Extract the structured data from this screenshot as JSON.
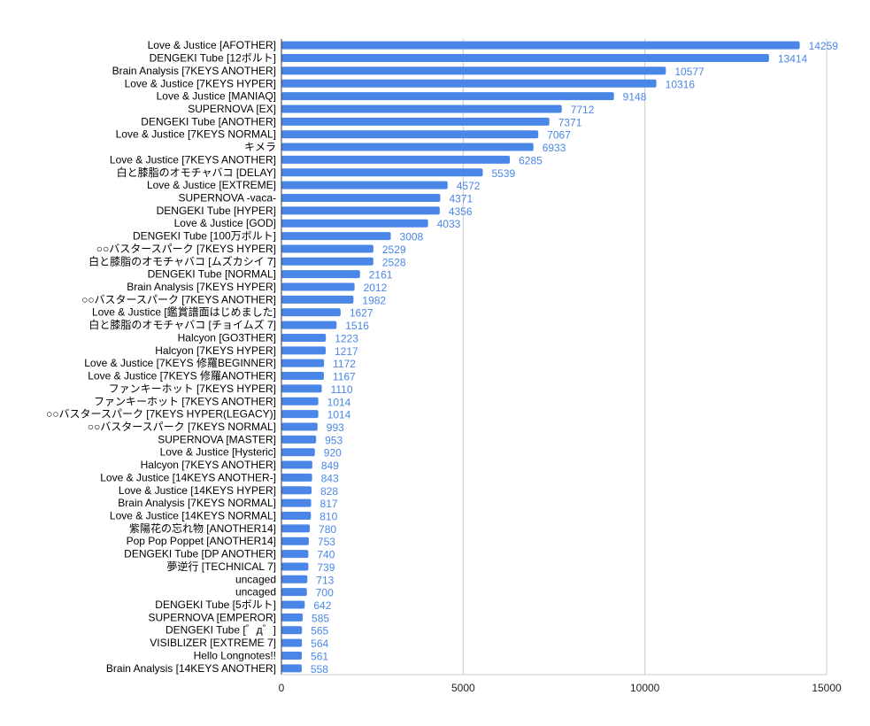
{
  "chart_data": {
    "type": "bar",
    "orientation": "horizontal",
    "title": "",
    "xlabel": "",
    "ylabel": "",
    "xlim": [
      0,
      15000
    ],
    "x_ticks": [
      0,
      5000,
      10000,
      15000
    ],
    "grid": true,
    "bar_color": "#4a86e8",
    "categories": [
      "Love & Justice [AFOTHER]",
      "DENGEKI Tube [12ボルト]",
      "Brain Analysis [7KEYS ANOTHER]",
      "Love & Justice [7KEYS HYPER]",
      "Love & Justice [MANIAQ]",
      "SUPERNOVA [EX]",
      "DENGEKI Tube [ANOTHER]",
      "Love & Justice [7KEYS NORMAL]",
      "キメラ",
      "Love & Justice [7KEYS ANOTHER]",
      "白と膝脂のオモチャバコ [DELAY]",
      "Love & Justice [EXTREME]",
      "SUPERNOVA -vaca-",
      "DENGEKI Tube [HYPER]",
      "Love & Justice [GOD]",
      "DENGEKI Tube [100万ボルト]",
      "○○バスタースパーク [7KEYS HYPER]",
      "白と膝脂のオモチャバコ [ムズカシイ 7]",
      "DENGEKI Tube [NORMAL]",
      "Brain Analysis [7KEYS HYPER]",
      "○○バスタースパーク [7KEYS ANOTHER]",
      "Love & Justice [鑑賞譜面はじめました]",
      "白と膝脂のオモチャバコ [チョイムズ 7]",
      "Halcyon [GO3THER]",
      "Halcyon [7KEYS HYPER]",
      "Love & Justice [7KEYS 修羅BEGINNER]",
      "Love & Justice [7KEYS 修羅ANOTHER]",
      "ファンキーホット [7KEYS HYPER]",
      "ファンキーホット [7KEYS ANOTHER]",
      "○○バスタースパーク [7KEYS HYPER(LEGACY)]",
      "○○バスタースパーク [7KEYS NORMAL]",
      "SUPERNOVA [MASTER]",
      "Love & Justice [Hysteric]",
      "Halcyon [7KEYS ANOTHER]",
      "Love & Justice [14KEYS ANOTHER-]",
      "Love & Justice [14KEYS HYPER]",
      "Brain Analysis [7KEYS NORMAL]",
      "Love & Justice [14KEYS NORMAL]",
      "紫陽花の忘れ物 [ANOTHER14]",
      "Pop Pop Poppet [ANOTHER14]",
      "DENGEKI Tube [DP ANOTHER]",
      "夢逆行 [TECHNICAL 7]",
      "uncaged",
      "uncaged",
      "DENGEKI Tube [5ボルト]",
      "SUPERNOVA [EMPEROR]",
      "DENGEKI Tube [゛д゛]",
      "VISIBLIZER [EXTREME 7]",
      "Hello Longnotes!!",
      "Brain Analysis [14KEYS ANOTHER]"
    ],
    "values": [
      14259,
      13414,
      10577,
      10316,
      9148,
      7712,
      7371,
      7067,
      6933,
      6285,
      5539,
      4572,
      4371,
      4356,
      4033,
      3008,
      2529,
      2528,
      2161,
      2012,
      1982,
      1627,
      1516,
      1223,
      1217,
      1172,
      1167,
      1110,
      1014,
      1014,
      993,
      953,
      920,
      849,
      843,
      828,
      817,
      810,
      780,
      753,
      740,
      739,
      713,
      700,
      642,
      585,
      565,
      564,
      561,
      558
    ]
  }
}
